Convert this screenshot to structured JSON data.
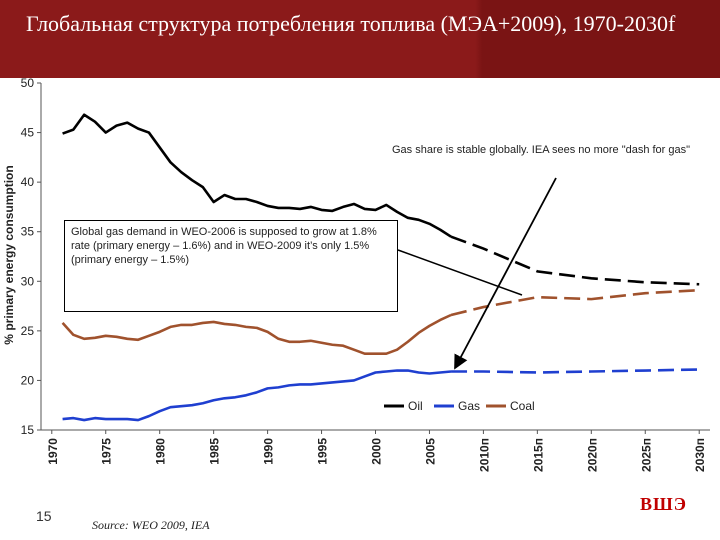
{
  "slide": {
    "title": "Глобальная структура потребления топлива (МЭА+2009), 1970-2030f",
    "page_number": "15",
    "source": "Source: WEO 2009, IEA",
    "logo": "ВШЭ"
  },
  "annotations": {
    "gas_share": "Gas share is stable globally. IEA sees  no more \"dash for gas\"",
    "gas_demand": "Global gas demand in WEO-2006 is supposed to grow at 1.8% rate (primary energy – 1.6%) and in WEO-2009 it’s only 1.5% (primary energy – 1.5%)"
  },
  "colors": {
    "title_bg": "#8b1a1a",
    "oil": "#000000",
    "gas": "#1f3fd0",
    "coal": "#a0522d",
    "logo": "#c00000"
  },
  "chart_data": {
    "type": "line",
    "title": "",
    "xlabel": "",
    "ylabel": "% primary energy consumption",
    "ylim": [
      15,
      50
    ],
    "yticks": [
      15,
      20,
      25,
      30,
      35,
      40,
      45,
      50
    ],
    "xticks": [
      "1970",
      "1975",
      "1980",
      "1985",
      "1990",
      "1995",
      "2000",
      "2005",
      "2010п",
      "2015п",
      "2020п",
      "2025п",
      "2030п"
    ],
    "grid": false,
    "legend_position": "bottom-right",
    "historical_end": 2007,
    "series": [
      {
        "name": "Oil",
        "color": "#000000",
        "x": [
          1971,
          1972,
          1973,
          1974,
          1975,
          1976,
          1977,
          1978,
          1979,
          1980,
          1981,
          1982,
          1983,
          1984,
          1985,
          1986,
          1987,
          1988,
          1989,
          1990,
          1991,
          1992,
          1993,
          1994,
          1995,
          1996,
          1997,
          1998,
          1999,
          2000,
          2001,
          2002,
          2003,
          2004,
          2005,
          2006,
          2007,
          2010,
          2015,
          2020,
          2025,
          2030
        ],
        "y": [
          44.9,
          45.3,
          46.8,
          46.1,
          45.0,
          45.7,
          46.0,
          45.4,
          45.0,
          43.5,
          42.0,
          41.0,
          40.2,
          39.5,
          38.0,
          38.7,
          38.3,
          38.3,
          38.0,
          37.6,
          37.4,
          37.4,
          37.3,
          37.5,
          37.2,
          37.1,
          37.5,
          37.8,
          37.3,
          37.2,
          37.7,
          37.0,
          36.4,
          36.2,
          35.8,
          35.2,
          34.5,
          33.3,
          31.0,
          30.3,
          29.9,
          29.7
        ]
      },
      {
        "name": "Gas",
        "color": "#1f3fd0",
        "x": [
          1971,
          1972,
          1973,
          1974,
          1975,
          1976,
          1977,
          1978,
          1979,
          1980,
          1981,
          1982,
          1983,
          1984,
          1985,
          1986,
          1987,
          1988,
          1989,
          1990,
          1991,
          1992,
          1993,
          1994,
          1995,
          1996,
          1997,
          1998,
          1999,
          2000,
          2001,
          2002,
          2003,
          2004,
          2005,
          2006,
          2007,
          2010,
          2015,
          2020,
          2025,
          2030
        ],
        "y": [
          16.1,
          16.2,
          16.0,
          16.2,
          16.1,
          16.1,
          16.1,
          16.0,
          16.4,
          16.9,
          17.3,
          17.4,
          17.5,
          17.7,
          18.0,
          18.2,
          18.3,
          18.5,
          18.8,
          19.2,
          19.3,
          19.5,
          19.6,
          19.6,
          19.7,
          19.8,
          19.9,
          20.0,
          20.4,
          20.8,
          20.9,
          21.0,
          21.0,
          20.8,
          20.7,
          20.8,
          20.9,
          20.9,
          20.8,
          20.9,
          21.0,
          21.1
        ]
      },
      {
        "name": "Coal",
        "color": "#a0522d",
        "x": [
          1971,
          1972,
          1973,
          1974,
          1975,
          1976,
          1977,
          1978,
          1979,
          1980,
          1981,
          1982,
          1983,
          1984,
          1985,
          1986,
          1987,
          1988,
          1989,
          1990,
          1991,
          1992,
          1993,
          1994,
          1995,
          1996,
          1997,
          1998,
          1999,
          2000,
          2001,
          2002,
          2003,
          2004,
          2005,
          2006,
          2007,
          2010,
          2015,
          2020,
          2025,
          2030
        ],
        "y": [
          25.8,
          24.6,
          24.2,
          24.3,
          24.5,
          24.4,
          24.2,
          24.1,
          24.5,
          24.9,
          25.4,
          25.6,
          25.6,
          25.8,
          25.9,
          25.7,
          25.6,
          25.4,
          25.3,
          24.9,
          24.2,
          23.9,
          23.9,
          24.0,
          23.8,
          23.6,
          23.5,
          23.1,
          22.7,
          22.7,
          22.7,
          23.1,
          23.9,
          24.8,
          25.5,
          26.1,
          26.6,
          27.4,
          28.4,
          28.2,
          28.8,
          29.1
        ]
      }
    ]
  }
}
